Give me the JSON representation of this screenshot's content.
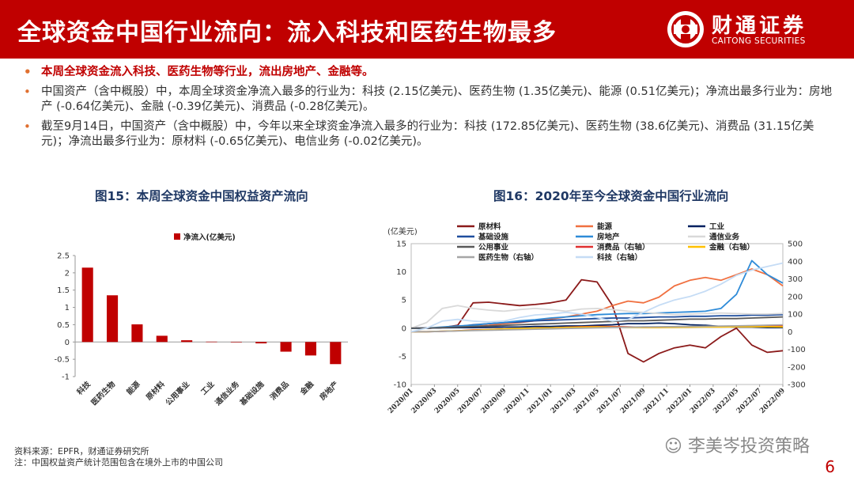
{
  "header": {
    "title": "全球资金中国行业流向：流入科技和医药生物最多",
    "logo_cn": "财通证券",
    "logo_en": "CAITONG SECURITIES"
  },
  "bullets": [
    "本周全球资金流入科技、医药生物等行业，流出房地产、金融等。",
    "中国资产（含中概股）中，本周全球资金净流入最多的行业为：科技 (2.15亿美元)、医药生物 (1.35亿美元)、能源 (0.51亿美元)；净流出最多行业为：房地产 (-0.64亿美元)、金融 (-0.39亿美元)、消费品 (-0.28亿美元)。",
    "截至9月14日，中国资产（含中概股）中，今年以来全球资金净流入最多的行业为：科技 (172.85亿美元)、医药生物 (38.6亿美元)、消费品 (31.15亿美元)；净流出最多行业为：原材料 (-0.65亿美元)、电信业务 (-0.02亿美元)。"
  ],
  "colors": {
    "brand_red": "#c00000",
    "bar_red": "#c00000",
    "title_blue": "#1f3864"
  },
  "chart_data": [
    {
      "type": "bar",
      "title": "图15：本周全球资金中国权益资产流向",
      "legend": "净流入(亿美元)",
      "categories": [
        "科技",
        "医药生物",
        "能源",
        "原材料",
        "公用事业",
        "工业",
        "通信业务",
        "基础设施",
        "消费品",
        "金融",
        "房地产"
      ],
      "values": [
        2.15,
        1.35,
        0.51,
        0.18,
        0.05,
        0.01,
        0.0,
        -0.04,
        -0.28,
        -0.39,
        -0.64
      ],
      "ylim": [
        -1,
        2.5
      ],
      "yticks": [
        "-1",
        "-0.5",
        "0",
        "0.5",
        "1",
        "1.5",
        "2",
        "2.5"
      ],
      "legend_position": "top"
    },
    {
      "type": "line",
      "title": "图16：2020年至今全球资金中国行业流向",
      "ylabel_left": "(亿美元)",
      "ylim_left": [
        -10,
        15
      ],
      "yticks_left": [
        "-10",
        "-5",
        "0",
        "5",
        "10",
        "15"
      ],
      "ylim_right": [
        -300,
        500
      ],
      "yticks_right": [
        "-300",
        "-200",
        "-100",
        "0",
        "100",
        "200",
        "300",
        "400",
        "500"
      ],
      "x_ticks": [
        "2020/01",
        "2020/03",
        "2020/05",
        "2020/07",
        "2020/09",
        "2020/11",
        "2021/01",
        "2021/03",
        "2021/05",
        "2021/07",
        "2021/09",
        "2021/11",
        "2022/01",
        "2022/03",
        "2022/05",
        "2022/07",
        "2022/09"
      ],
      "series": [
        {
          "name": "原材料",
          "axis": "left",
          "color": "#8b1a1a",
          "values": [
            0,
            0,
            0.1,
            0.5,
            4.5,
            4.6,
            4.3,
            4.0,
            4.2,
            4.5,
            5.0,
            8.6,
            8.2,
            4.0,
            -4.5,
            -6.0,
            -4.5,
            -3.5,
            -3.0,
            -3.5,
            -1.5,
            0.0,
            -3.0,
            -4.3,
            -4.0
          ]
        },
        {
          "name": "能源",
          "axis": "left",
          "color": "#f07040",
          "values": [
            0,
            0,
            0.1,
            0.2,
            0.3,
            0.5,
            0.8,
            1.0,
            1.3,
            1.6,
            2.0,
            2.5,
            3.0,
            4.0,
            4.8,
            4.5,
            5.5,
            7.5,
            8.5,
            9.0,
            8.5,
            9.5,
            10.5,
            9.5,
            7.5
          ]
        },
        {
          "name": "工业",
          "axis": "left",
          "color": "#002060",
          "values": [
            0,
            0,
            0.05,
            0.1,
            0.1,
            0.15,
            0.2,
            0.2,
            0.3,
            0.3,
            0.4,
            0.4,
            0.5,
            0.6,
            0.8,
            0.8,
            0.9,
            0.8,
            0.6,
            0.5,
            0.3,
            0.2,
            0.2,
            0.1,
            0.1
          ]
        },
        {
          "name": "基础设施",
          "axis": "left",
          "color": "#1f4e9e",
          "values": [
            0,
            0,
            0.1,
            0.3,
            0.6,
            0.8,
            1.0,
            1.1,
            1.3,
            1.4,
            1.5,
            1.6,
            1.7,
            1.8,
            1.8,
            1.9,
            2.0,
            2.0,
            2.1,
            2.1,
            2.2,
            2.2,
            2.3,
            2.3,
            2.4
          ]
        },
        {
          "name": "房地产",
          "axis": "left",
          "color": "#2e8bd8",
          "values": [
            0,
            0,
            0.2,
            0.4,
            0.5,
            0.8,
            1.0,
            1.3,
            1.5,
            1.8,
            2.0,
            2.2,
            2.4,
            2.5,
            2.6,
            2.6,
            2.7,
            2.8,
            2.9,
            3.0,
            3.5,
            6.0,
            12.0,
            9.5,
            8.0
          ]
        },
        {
          "name": "通信业务",
          "axis": "left",
          "color": "#d9d9d9",
          "values": [
            0,
            1.0,
            3.5,
            4.0,
            3.5,
            3.2,
            3.0,
            3.3,
            3.5,
            3.3,
            3.0,
            3.4,
            3.5,
            3.3,
            3.0,
            2.8,
            2.6,
            2.4,
            2.5,
            2.6,
            2.7,
            2.6,
            2.5,
            2.5,
            2.6
          ]
        },
        {
          "name": "公用事业",
          "axis": "left",
          "color": "#595959",
          "values": [
            0,
            0,
            0.1,
            0.2,
            0.3,
            0.4,
            0.5,
            0.6,
            0.7,
            0.8,
            0.9,
            1.0,
            1.1,
            1.2,
            1.3,
            1.3,
            1.4,
            1.5,
            1.6,
            1.6,
            1.7,
            1.7,
            1.8,
            1.9,
            2.0
          ]
        },
        {
          "name": "消费品（右轴）",
          "axis": "right",
          "color": "#e03030",
          "values": [
            0,
            0,
            2,
            5,
            10,
            12,
            15,
            17,
            20,
            22,
            25,
            28,
            30,
            29,
            27,
            25,
            25,
            26,
            27,
            28,
            28,
            29,
            30,
            31,
            31
          ]
        },
        {
          "name": "金融（右轴）",
          "axis": "right",
          "color": "#ffc000",
          "values": [
            0,
            0,
            3,
            5,
            8,
            12,
            15,
            18,
            20,
            22,
            24,
            26,
            27,
            26,
            25,
            24,
            24,
            25,
            26,
            27,
            27,
            28,
            28,
            28,
            27
          ]
        },
        {
          "name": "医药生物（右轴）",
          "axis": "right",
          "color": "#a6a6a6",
          "values": [
            0,
            0,
            2,
            4,
            6,
            8,
            10,
            12,
            14,
            16,
            18,
            20,
            22,
            24,
            26,
            27,
            28,
            29,
            30,
            31,
            32,
            33,
            35,
            37,
            39
          ]
        },
        {
          "name": "科技（右轴）",
          "axis": "right",
          "color": "#c5dcf5",
          "values": [
            0,
            20,
            60,
            70,
            60,
            55,
            60,
            80,
            95,
            100,
            110,
            100,
            80,
            60,
            70,
            110,
            150,
            180,
            200,
            230,
            270,
            320,
            350,
            370,
            390
          ]
        }
      ],
      "legend_position": "top"
    }
  ],
  "footer": {
    "source": "资料来源：EPFR，财通证券研究所",
    "note": "注：中国权益资产统计范围包含在境外上市的中国公司"
  },
  "watermark": "李美岑投资策略",
  "page_number": "6"
}
